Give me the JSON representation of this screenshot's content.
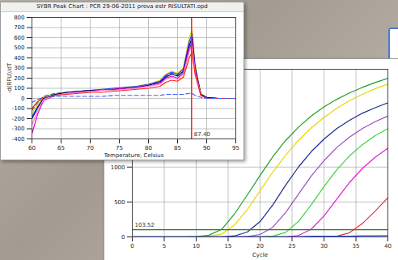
{
  "chart_data": [
    {
      "type": "line",
      "title": "SYBR Peak Chart : PCR 29-06-2011 prova estr RISULTATI.opd",
      "x_label": "Temperature, Celsius",
      "y_label": "-d(RFU)/dT",
      "x": [
        60,
        61,
        62,
        64,
        66,
        68,
        70,
        72,
        74,
        76,
        78,
        80,
        82,
        83,
        84,
        85,
        86,
        87,
        87.5,
        88,
        89,
        90,
        92,
        95
      ],
      "xlim": [
        60,
        95
      ],
      "xticks": [
        60,
        65,
        70,
        75,
        80,
        85,
        90,
        95
      ],
      "ylim": [
        -400,
        800
      ],
      "yticks": [
        -400,
        -300,
        -200,
        -100,
        0,
        100,
        200,
        300,
        400,
        500,
        600,
        700,
        800
      ],
      "grid": true,
      "cursor": {
        "value": 87.4,
        "label": "87.40",
        "color": "#ff2020"
      },
      "series": [
        {
          "color": "#1a8a1a",
          "line_style": "dashed",
          "values": [
            -120,
            -40,
            20,
            50,
            60,
            70,
            80,
            80,
            90,
            100,
            110,
            130,
            170,
            220,
            250,
            230,
            260,
            480,
            560,
            300,
            40,
            10,
            0,
            0
          ]
        },
        {
          "color": "#e8d800",
          "line_style": "solid",
          "values": [
            -150,
            -60,
            10,
            40,
            60,
            70,
            80,
            90,
            100,
            110,
            120,
            140,
            180,
            240,
            270,
            250,
            300,
            600,
            680,
            350,
            50,
            10,
            0,
            0
          ]
        },
        {
          "color": "#2040ff",
          "line_style": "solid",
          "values": [
            -180,
            -80,
            0,
            40,
            60,
            70,
            80,
            90,
            100,
            110,
            120,
            140,
            170,
            230,
            260,
            240,
            290,
            560,
            640,
            320,
            40,
            10,
            0,
            0
          ]
        },
        {
          "color": "#000080",
          "line_style": "solid",
          "values": [
            -200,
            -90,
            0,
            40,
            60,
            70,
            80,
            80,
            90,
            100,
            110,
            130,
            160,
            210,
            240,
            220,
            270,
            520,
            600,
            300,
            40,
            10,
            0,
            0
          ]
        },
        {
          "color": "#e000e0",
          "line_style": "solid",
          "values": [
            -350,
            -150,
            -20,
            30,
            50,
            60,
            70,
            80,
            90,
            100,
            110,
            120,
            150,
            200,
            220,
            200,
            250,
            500,
            560,
            280,
            30,
            0,
            0,
            0
          ]
        },
        {
          "color": "#ff80c0",
          "line_style": "solid",
          "values": [
            -260,
            -120,
            -10,
            30,
            50,
            60,
            70,
            80,
            80,
            90,
            100,
            120,
            140,
            190,
            210,
            190,
            240,
            460,
            520,
            260,
            30,
            0,
            0,
            0
          ]
        },
        {
          "color": "#ff2020",
          "line_style": "solid",
          "values": [
            -100,
            -30,
            10,
            30,
            40,
            50,
            60,
            60,
            70,
            80,
            90,
            100,
            120,
            160,
            180,
            170,
            210,
            400,
            460,
            240,
            30,
            0,
            0,
            0
          ]
        },
        {
          "color": "#4060ff",
          "line_style": "dashed",
          "values": [
            -40,
            -10,
            10,
            20,
            20,
            20,
            20,
            20,
            30,
            30,
            30,
            30,
            30,
            40,
            40,
            40,
            40,
            50,
            50,
            30,
            10,
            0,
            0,
            0
          ]
        }
      ]
    },
    {
      "type": "line",
      "x_label": "Cycle",
      "x": [
        0,
        2,
        4,
        6,
        8,
        10,
        12,
        14,
        16,
        18,
        20,
        22,
        24,
        26,
        28,
        30,
        32,
        34,
        36,
        38,
        40
      ],
      "xlim": [
        0,
        40
      ],
      "xticks": [
        0,
        5,
        10,
        15,
        20,
        25,
        30,
        35,
        40
      ],
      "ylim": [
        0,
        2400
      ],
      "yticks": [
        0,
        500,
        1000
      ],
      "grid": true,
      "threshold": {
        "value": 103.52,
        "label": "103.52",
        "color": "#2a7a2a"
      },
      "series": [
        {
          "color": "#1f9e2a",
          "values": [
            0,
            0,
            0,
            0,
            0,
            5,
            25,
            110,
            330,
            600,
            880,
            1150,
            1380,
            1570,
            1730,
            1860,
            1970,
            2060,
            2140,
            2210,
            2270
          ]
        },
        {
          "color": "#e6d800",
          "values": [
            0,
            0,
            0,
            0,
            0,
            0,
            10,
            40,
            170,
            390,
            660,
            930,
            1170,
            1380,
            1560,
            1710,
            1840,
            1950,
            2040,
            2120,
            2190
          ]
        },
        {
          "color": "#1c2a8c",
          "values": [
            0,
            0,
            0,
            0,
            0,
            0,
            0,
            0,
            15,
            70,
            220,
            460,
            740,
            1000,
            1220,
            1400,
            1550,
            1670,
            1770,
            1850,
            1920
          ]
        },
        {
          "color": "#9a4fc4",
          "values": [
            0,
            0,
            0,
            0,
            0,
            0,
            0,
            0,
            0,
            5,
            35,
            140,
            350,
            610,
            870,
            1090,
            1280,
            1430,
            1550,
            1650,
            1730
          ]
        },
        {
          "color": "#3cd23c",
          "values": [
            0,
            0,
            0,
            0,
            0,
            0,
            0,
            0,
            0,
            0,
            0,
            10,
            65,
            220,
            460,
            720,
            960,
            1160,
            1320,
            1450,
            1550
          ]
        },
        {
          "color": "#e020d0",
          "values": [
            0,
            0,
            0,
            0,
            0,
            0,
            0,
            0,
            0,
            0,
            0,
            0,
            0,
            20,
            110,
            300,
            540,
            780,
            980,
            1140,
            1270
          ]
        },
        {
          "color": "#f03030",
          "values": [
            0,
            0,
            0,
            0,
            0,
            0,
            0,
            0,
            0,
            0,
            0,
            0,
            0,
            0,
            0,
            0,
            10,
            60,
            190,
            370,
            560
          ]
        },
        {
          "color": "#3050ff",
          "values": [
            5,
            5,
            5,
            5,
            5,
            5,
            5,
            5,
            5,
            5,
            5,
            5,
            5,
            5,
            10,
            10,
            10,
            10,
            15,
            15,
            20
          ]
        }
      ]
    }
  ]
}
